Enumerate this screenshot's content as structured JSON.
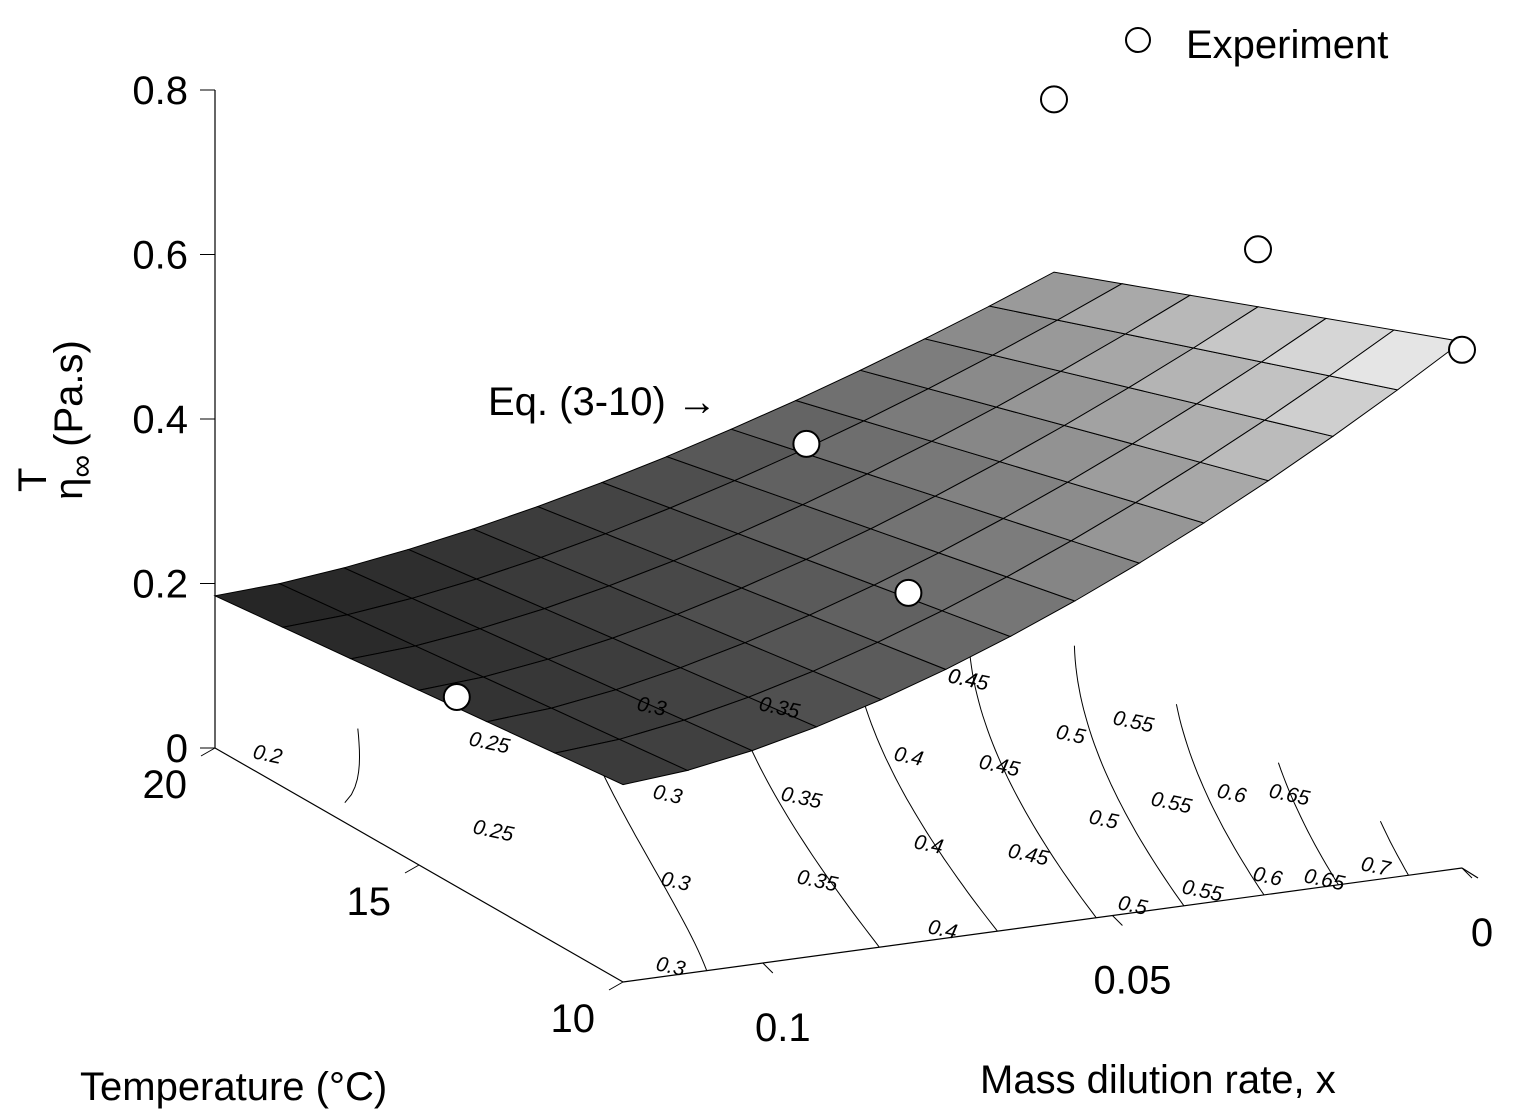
{
  "chart_data": {
    "type": "surface",
    "xlabel": "Mass dilution rate, x",
    "ylabel": "Temperature (°C)",
    "zlabel_symbol": "η",
    "zlabel_sup": "T",
    "zlabel_sub": "∞",
    "zlabel_unit": "(Pa.s)",
    "x_ticks": [
      "0.1",
      "0.05",
      "0"
    ],
    "x_tick_values": [
      0.1,
      0.05,
      0
    ],
    "y_ticks": [
      "10",
      "15",
      "20"
    ],
    "y_tick_values": [
      10,
      15,
      20
    ],
    "z_ticks": [
      "0",
      "0.2",
      "0.4",
      "0.6",
      "0.8"
    ],
    "z_tick_values": [
      0,
      0.2,
      0.4,
      0.6,
      0.8
    ],
    "xlim": [
      0,
      0.12
    ],
    "ylim": [
      10,
      20
    ],
    "zlim": [
      0,
      0.8
    ],
    "surface": {
      "x_range": [
        0,
        0.12
      ],
      "y_range": [
        10,
        20
      ],
      "grid_x_count": 13,
      "grid_y_count": 6,
      "corner_values": {
        "x0_y10": 0.64,
        "x0_y20": 0.44,
        "x012_y10": 0.24,
        "x012_y20": 0.185
      }
    },
    "annotation": "Eq. (3-10) →",
    "legend": {
      "label": "Experiment",
      "placement": "top-right"
    },
    "series": [
      {
        "name": "Experiment",
        "points": [
          {
            "x": 0.1,
            "y": 17.5,
            "z": 0.11
          },
          {
            "x": 0.05,
            "y": 15,
            "z": 0.25
          },
          {
            "x": 0.05,
            "y": 17.5,
            "z": 0.36
          },
          {
            "x": 0,
            "y": 10,
            "z": 0.63
          },
          {
            "x": 0,
            "y": 15,
            "z": 0.61
          },
          {
            "x": 0,
            "y": 20,
            "z": 0.65
          }
        ]
      }
    ],
    "contour_labels": [
      "0.2",
      "0.25",
      "0.25",
      "0.3",
      "0.3",
      "0.3",
      "0.3",
      "0.35",
      "0.35",
      "0.35",
      "0.4",
      "0.4",
      "0.4",
      "0.4",
      "0.45",
      "0.45",
      "0.45",
      "0.5",
      "0.5",
      "0.5",
      "0.55",
      "0.55",
      "0.55",
      "0.6",
      "0.6",
      "0.65",
      "0.65",
      "0.7"
    ],
    "grid": false
  }
}
